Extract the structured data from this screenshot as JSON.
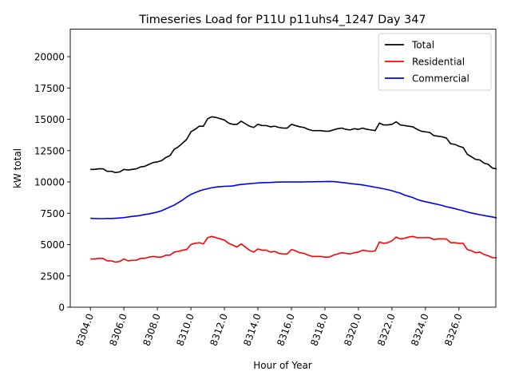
{
  "chart_data": {
    "type": "line",
    "title": "Timeseries Load for P11U p11uhs4_1247  Day 347",
    "xlabel": "Hour of Year",
    "ylabel": "kW total",
    "xlim": [
      8302.8,
      8328.2
    ],
    "ylim": [
      0,
      22200
    ],
    "xticks": [
      8304,
      8306,
      8308,
      8310,
      8312,
      8314,
      8316,
      8318,
      8320,
      8322,
      8324,
      8326
    ],
    "xtick_labels": [
      "8304.0",
      "8306.0",
      "8308.0",
      "8310.0",
      "8312.0",
      "8314.0",
      "8316.0",
      "8318.0",
      "8320.0",
      "8322.0",
      "8324.0",
      "8326.0"
    ],
    "yticks": [
      0,
      2500,
      5000,
      7500,
      10000,
      12500,
      15000,
      17500,
      20000
    ],
    "ytick_labels": [
      "0",
      "2500",
      "5000",
      "7500",
      "10000",
      "12500",
      "15000",
      "17500",
      "20000"
    ],
    "legend_position": "top-right",
    "x_start": 8304.0,
    "x_step": 0.25,
    "series": [
      {
        "name": "Total",
        "color": "#000000",
        "values": [
          11000,
          11000,
          11050,
          11050,
          10850,
          10850,
          10750,
          10800,
          11000,
          10950,
          11000,
          11050,
          11200,
          11250,
          11400,
          11550,
          11600,
          11700,
          11950,
          12100,
          12600,
          12800,
          13100,
          13400,
          14000,
          14200,
          14450,
          14450,
          15050,
          15200,
          15150,
          15050,
          14950,
          14700,
          14600,
          14600,
          14850,
          14650,
          14450,
          14350,
          14600,
          14500,
          14500,
          14400,
          14450,
          14350,
          14300,
          14300,
          14600,
          14500,
          14400,
          14350,
          14200,
          14100,
          14100,
          14100,
          14050,
          14050,
          14150,
          14250,
          14300,
          14200,
          14150,
          14250,
          14200,
          14300,
          14200,
          14150,
          14100,
          14700,
          14550,
          14550,
          14600,
          14800,
          14550,
          14500,
          14450,
          14400,
          14200,
          14050,
          14000,
          13950,
          13700,
          13650,
          13600,
          13500,
          13050,
          13000,
          12850,
          12750,
          12200,
          12000,
          11800,
          11750,
          11500,
          11400,
          11100,
          11050
        ]
      },
      {
        "name": "Residential",
        "color": "#ff0000",
        "values": [
          3850,
          3850,
          3900,
          3900,
          3700,
          3700,
          3600,
          3650,
          3850,
          3700,
          3750,
          3750,
          3900,
          3900,
          4000,
          4050,
          4000,
          4000,
          4150,
          4150,
          4400,
          4450,
          4550,
          4600,
          5000,
          5100,
          5150,
          5050,
          5550,
          5650,
          5550,
          5450,
          5350,
          5100,
          4950,
          4800,
          5050,
          4800,
          4550,
          4400,
          4650,
          4550,
          4550,
          4400,
          4450,
          4300,
          4250,
          4250,
          4600,
          4500,
          4350,
          4300,
          4150,
          4050,
          4050,
          4050,
          4000,
          4000,
          4150,
          4250,
          4350,
          4300,
          4250,
          4350,
          4400,
          4550,
          4500,
          4450,
          4500,
          5200,
          5100,
          5150,
          5300,
          5600,
          5450,
          5500,
          5600,
          5650,
          5550,
          5550,
          5550,
          5550,
          5400,
          5450,
          5450,
          5450,
          5150,
          5150,
          5100,
          5100,
          4600,
          4500,
          4350,
          4400,
          4200,
          4100,
          3950,
          3950
        ]
      },
      {
        "name": "Commercial",
        "color": "#0000ff",
        "values": [
          7100,
          7080,
          7070,
          7070,
          7080,
          7080,
          7100,
          7120,
          7150,
          7200,
          7250,
          7280,
          7330,
          7400,
          7450,
          7520,
          7600,
          7700,
          7850,
          8000,
          8150,
          8350,
          8550,
          8800,
          9000,
          9150,
          9280,
          9380,
          9460,
          9540,
          9590,
          9620,
          9650,
          9660,
          9680,
          9750,
          9800,
          9830,
          9860,
          9890,
          9920,
          9940,
          9950,
          9960,
          9980,
          9990,
          10000,
          10000,
          10000,
          10000,
          10000,
          10000,
          10010,
          10010,
          10020,
          10020,
          10030,
          10040,
          10030,
          10000,
          9960,
          9920,
          9870,
          9840,
          9800,
          9760,
          9700,
          9640,
          9580,
          9520,
          9450,
          9380,
          9300,
          9200,
          9100,
          8950,
          8850,
          8750,
          8600,
          8500,
          8420,
          8350,
          8270,
          8200,
          8120,
          8020,
          7950,
          7870,
          7780,
          7700,
          7600,
          7520,
          7450,
          7380,
          7320,
          7260,
          7200,
          7130
        ]
      }
    ]
  }
}
